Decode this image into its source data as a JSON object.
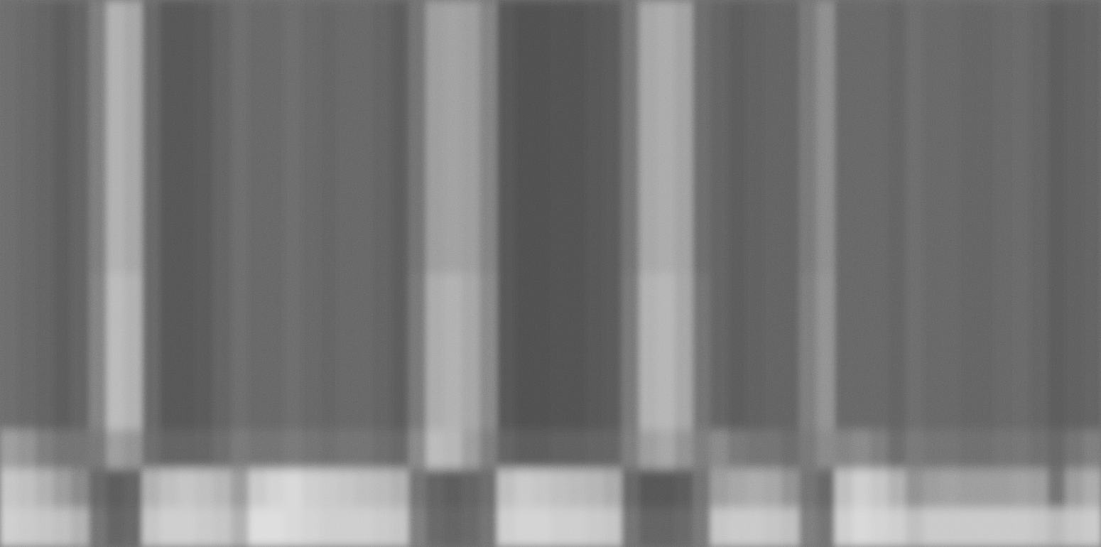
{
  "chart_data": {
    "type": "heatmap",
    "tick_labels": false,
    "cells": [
      [
        105,
        100,
        95,
        90,
        95,
        120,
        170,
        160,
        100,
        85,
        85,
        88,
        95,
        105,
        100,
        100,
        105,
        100,
        98,
        100,
        100,
        95,
        90,
        110,
        150,
        155,
        150,
        125,
        85,
        80,
        80,
        82,
        82,
        85,
        88,
        110,
        160,
        165,
        155,
        105,
        95,
        90,
        92,
        95,
        95,
        115,
        135,
        100,
        100,
        100,
        95,
        105,
        100,
        100,
        98,
        98,
        100,
        102,
        98,
        90,
        92,
        95
      ],
      [
        105,
        100,
        95,
        90,
        95,
        120,
        170,
        160,
        100,
        85,
        85,
        88,
        95,
        105,
        100,
        100,
        105,
        100,
        98,
        100,
        100,
        95,
        90,
        110,
        150,
        155,
        150,
        125,
        85,
        80,
        80,
        82,
        82,
        85,
        88,
        110,
        160,
        165,
        155,
        105,
        95,
        90,
        92,
        95,
        95,
        115,
        135,
        100,
        100,
        100,
        95,
        105,
        100,
        100,
        98,
        98,
        100,
        102,
        98,
        90,
        92,
        95
      ],
      [
        105,
        100,
        95,
        90,
        95,
        120,
        170,
        160,
        100,
        85,
        85,
        88,
        95,
        105,
        100,
        100,
        105,
        100,
        98,
        100,
        100,
        95,
        90,
        110,
        150,
        155,
        150,
        125,
        85,
        80,
        80,
        82,
        82,
        85,
        88,
        110,
        160,
        165,
        155,
        105,
        95,
        90,
        92,
        95,
        95,
        115,
        135,
        100,
        100,
        100,
        95,
        105,
        100,
        100,
        98,
        98,
        100,
        102,
        98,
        90,
        92,
        95
      ],
      [
        105,
        100,
        95,
        90,
        95,
        120,
        170,
        160,
        100,
        85,
        85,
        88,
        95,
        105,
        100,
        100,
        105,
        100,
        98,
        100,
        100,
        95,
        90,
        110,
        150,
        155,
        150,
        125,
        85,
        80,
        80,
        82,
        82,
        85,
        88,
        110,
        160,
        165,
        155,
        105,
        95,
        90,
        92,
        95,
        95,
        115,
        135,
        100,
        100,
        100,
        95,
        105,
        100,
        100,
        98,
        98,
        100,
        102,
        98,
        90,
        92,
        95
      ],
      [
        105,
        100,
        95,
        90,
        95,
        120,
        170,
        160,
        100,
        85,
        85,
        88,
        95,
        105,
        100,
        100,
        105,
        100,
        98,
        100,
        100,
        95,
        90,
        110,
        150,
        155,
        150,
        125,
        85,
        80,
        80,
        82,
        82,
        85,
        88,
        110,
        160,
        165,
        155,
        105,
        95,
        90,
        92,
        95,
        95,
        115,
        135,
        100,
        100,
        100,
        95,
        105,
        100,
        100,
        98,
        98,
        100,
        102,
        98,
        90,
        92,
        95
      ],
      [
        105,
        100,
        95,
        90,
        95,
        120,
        170,
        160,
        100,
        85,
        85,
        88,
        95,
        105,
        100,
        100,
        105,
        100,
        98,
        100,
        100,
        95,
        90,
        110,
        150,
        155,
        150,
        125,
        85,
        80,
        80,
        82,
        82,
        85,
        88,
        110,
        160,
        165,
        155,
        105,
        95,
        90,
        92,
        95,
        95,
        115,
        135,
        100,
        100,
        100,
        95,
        105,
        100,
        100,
        98,
        98,
        100,
        102,
        98,
        90,
        92,
        95
      ],
      [
        105,
        100,
        95,
        90,
        95,
        120,
        170,
        160,
        100,
        85,
        85,
        88,
        95,
        105,
        100,
        100,
        105,
        100,
        98,
        100,
        100,
        95,
        90,
        110,
        150,
        155,
        150,
        125,
        85,
        80,
        80,
        82,
        82,
        85,
        88,
        110,
        160,
        165,
        155,
        105,
        95,
        90,
        92,
        95,
        95,
        115,
        135,
        100,
        100,
        100,
        95,
        105,
        100,
        100,
        98,
        98,
        100,
        102,
        98,
        90,
        92,
        95
      ],
      [
        105,
        100,
        95,
        90,
        95,
        125,
        180,
        170,
        100,
        85,
        85,
        88,
        95,
        105,
        100,
        100,
        105,
        100,
        98,
        100,
        100,
        95,
        90,
        115,
        165,
        170,
        160,
        130,
        85,
        80,
        80,
        82,
        82,
        85,
        88,
        115,
        170,
        175,
        160,
        110,
        95,
        90,
        92,
        95,
        95,
        120,
        140,
        100,
        100,
        100,
        95,
        105,
        100,
        100,
        98,
        98,
        100,
        102,
        98,
        90,
        92,
        95
      ],
      [
        105,
        100,
        95,
        90,
        95,
        125,
        180,
        170,
        100,
        85,
        85,
        88,
        95,
        105,
        100,
        100,
        105,
        100,
        98,
        100,
        100,
        95,
        90,
        115,
        165,
        170,
        160,
        130,
        85,
        80,
        80,
        82,
        82,
        85,
        88,
        115,
        170,
        175,
        160,
        110,
        95,
        90,
        92,
        95,
        95,
        120,
        140,
        100,
        100,
        100,
        95,
        105,
        100,
        100,
        98,
        98,
        100,
        102,
        98,
        90,
        92,
        95
      ],
      [
        105,
        100,
        95,
        90,
        95,
        125,
        180,
        170,
        100,
        85,
        85,
        88,
        95,
        105,
        100,
        100,
        105,
        100,
        98,
        100,
        100,
        95,
        90,
        115,
        165,
        170,
        160,
        130,
        85,
        80,
        80,
        82,
        82,
        85,
        88,
        115,
        170,
        175,
        160,
        110,
        95,
        90,
        92,
        95,
        95,
        120,
        140,
        100,
        100,
        100,
        95,
        105,
        100,
        100,
        98,
        98,
        100,
        102,
        98,
        90,
        92,
        95
      ],
      [
        105,
        100,
        95,
        90,
        95,
        125,
        180,
        170,
        100,
        85,
        85,
        88,
        95,
        105,
        100,
        100,
        105,
        100,
        98,
        100,
        100,
        95,
        90,
        115,
        165,
        170,
        160,
        130,
        85,
        80,
        80,
        82,
        82,
        85,
        88,
        115,
        170,
        175,
        160,
        110,
        95,
        90,
        92,
        95,
        95,
        120,
        140,
        100,
        100,
        100,
        95,
        105,
        100,
        100,
        98,
        98,
        100,
        102,
        98,
        90,
        92,
        95
      ],
      [
        150,
        140,
        120,
        110,
        110,
        115,
        150,
        140,
        105,
        95,
        95,
        98,
        105,
        115,
        110,
        110,
        115,
        110,
        108,
        110,
        110,
        105,
        100,
        130,
        180,
        175,
        150,
        120,
        95,
        90,
        90,
        92,
        92,
        95,
        98,
        120,
        150,
        160,
        140,
        120,
        130,
        115,
        110,
        110,
        105,
        115,
        130,
        125,
        130,
        120,
        105,
        115,
        110,
        110,
        108,
        108,
        110,
        112,
        108,
        100,
        110,
        120
      ],
      [
        190,
        185,
        170,
        150,
        130,
        100,
        90,
        95,
        170,
        185,
        190,
        185,
        175,
        150,
        195,
        205,
        210,
        200,
        195,
        190,
        185,
        180,
        170,
        110,
        95,
        90,
        95,
        105,
        185,
        195,
        190,
        185,
        180,
        175,
        165,
        100,
        85,
        85,
        90,
        110,
        150,
        160,
        165,
        160,
        140,
        110,
        100,
        185,
        200,
        190,
        170,
        140,
        150,
        155,
        150,
        150,
        150,
        155,
        150,
        110,
        150,
        165
      ],
      [
        200,
        195,
        190,
        185,
        170,
        110,
        95,
        100,
        190,
        200,
        200,
        195,
        190,
        170,
        215,
        215,
        210,
        205,
        200,
        200,
        200,
        195,
        190,
        120,
        100,
        95,
        100,
        110,
        200,
        205,
        205,
        200,
        200,
        195,
        190,
        110,
        95,
        95,
        100,
        115,
        190,
        195,
        195,
        190,
        185,
        120,
        110,
        200,
        210,
        205,
        200,
        185,
        195,
        195,
        195,
        195,
        195,
        195,
        190,
        180,
        190,
        195
      ]
    ]
  }
}
